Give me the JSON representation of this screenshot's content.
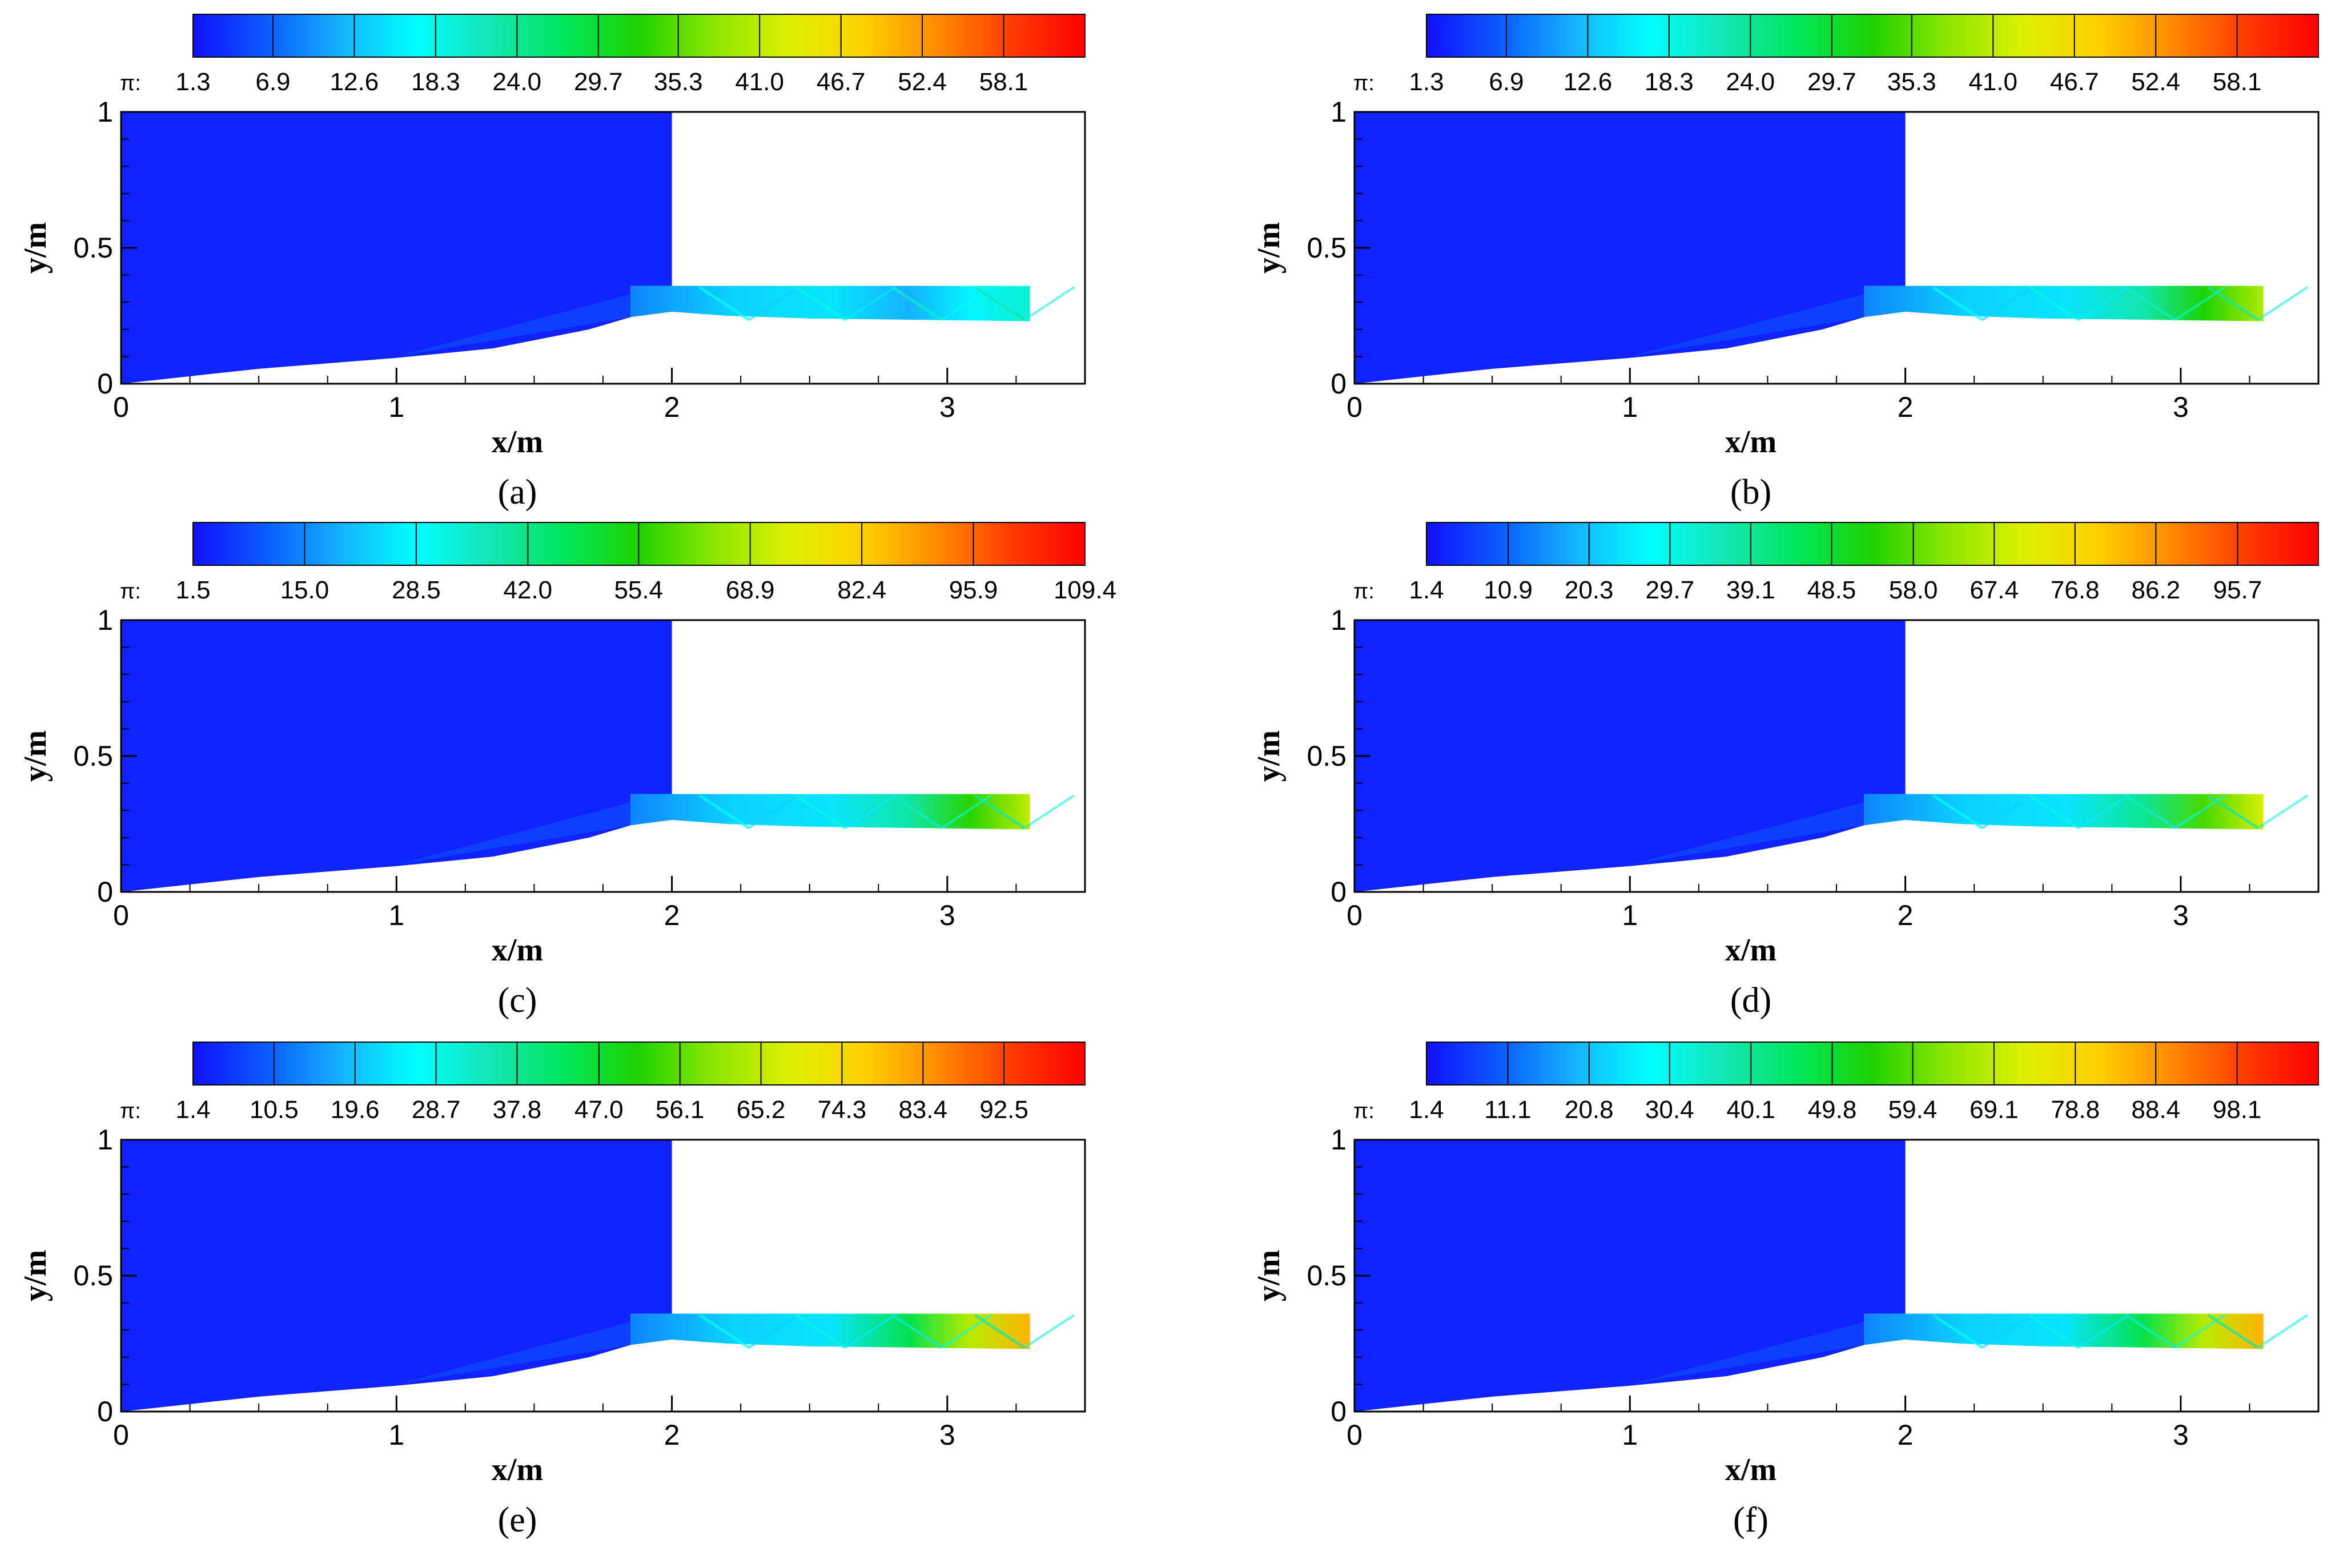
{
  "figure": {
    "colormap": [
      "#1010ff",
      "#0a5cff",
      "#14b4ff",
      "#00ffff",
      "#14e6b4",
      "#00e65a",
      "#1ed200",
      "#8ce600",
      "#dcf000",
      "#ffd200",
      "#ff8c00",
      "#ff3c00",
      "#ff0000"
    ],
    "panels": [
      {
        "label": "(a)",
        "colorbar_symbol": "π:",
        "chart_data": {
          "type": "heatmap",
          "title": "",
          "xlabel": "x/m",
          "ylabel": "y/m",
          "xlim": [
            0,
            3.5
          ],
          "ylim": [
            0,
            1
          ],
          "x_ticks": [
            "0",
            "1",
            "2",
            "3"
          ],
          "y_ticks": [
            "0",
            "0.5",
            "1"
          ],
          "colorbar_ticks": [
            "1.3",
            "6.9",
            "12.6",
            "18.3",
            "24.0",
            "29.7",
            "35.3",
            "41.0",
            "46.7",
            "52.4",
            "58.1"
          ],
          "colorbar_range": [
            1.3,
            63.8
          ],
          "field_summary": {
            "inflow_region_value": 1.3,
            "duct_exit_max_value": 20
          }
        }
      },
      {
        "label": "(b)",
        "colorbar_symbol": "π:",
        "chart_data": {
          "type": "heatmap",
          "title": "",
          "xlabel": "x/m",
          "ylabel": "y/m",
          "xlim": [
            0,
            3.5
          ],
          "ylim": [
            0,
            1
          ],
          "x_ticks": [
            "0",
            "1",
            "2",
            "3"
          ],
          "y_ticks": [
            "0",
            "0.5",
            "1"
          ],
          "colorbar_ticks": [
            "1.3",
            "6.9",
            "12.6",
            "18.3",
            "24.0",
            "29.7",
            "35.3",
            "41.0",
            "46.7",
            "52.4",
            "58.1"
          ],
          "colorbar_range": [
            1.3,
            63.8
          ],
          "field_summary": {
            "inflow_region_value": 1.3,
            "duct_exit_max_value": 40
          }
        }
      },
      {
        "label": "(c)",
        "colorbar_symbol": "π:",
        "chart_data": {
          "type": "heatmap",
          "title": "",
          "xlabel": "x/m",
          "ylabel": "y/m",
          "xlim": [
            0,
            3.5
          ],
          "ylim": [
            0,
            1
          ],
          "x_ticks": [
            "0",
            "1",
            "2",
            "3"
          ],
          "y_ticks": [
            "0",
            "0.5",
            "1"
          ],
          "colorbar_ticks": [
            "1.5",
            "15.0",
            "28.5",
            "42.0",
            "55.4",
            "68.9",
            "82.4",
            "95.9",
            "109.4"
          ],
          "colorbar_range": [
            1.5,
            109.4
          ],
          "field_summary": {
            "inflow_region_value": 1.5,
            "duct_exit_max_value": 70
          }
        }
      },
      {
        "label": "(d)",
        "colorbar_symbol": "π:",
        "chart_data": {
          "type": "heatmap",
          "title": "",
          "xlabel": "x/m",
          "ylabel": "y/m",
          "xlim": [
            0,
            3.5
          ],
          "ylim": [
            0,
            1
          ],
          "x_ticks": [
            "0",
            "1",
            "2",
            "3"
          ],
          "y_ticks": [
            "0",
            "0.5",
            "1"
          ],
          "colorbar_ticks": [
            "1.4",
            "10.9",
            "20.3",
            "29.7",
            "39.1",
            "48.5",
            "58.0",
            "67.4",
            "76.8",
            "86.2",
            "95.7"
          ],
          "colorbar_range": [
            1.4,
            105.1
          ],
          "field_summary": {
            "inflow_region_value": 1.4,
            "duct_exit_max_value": 70
          }
        }
      },
      {
        "label": "(e)",
        "colorbar_symbol": "π:",
        "chart_data": {
          "type": "heatmap",
          "title": "",
          "xlabel": "x/m",
          "ylabel": "y/m",
          "xlim": [
            0,
            3.5
          ],
          "ylim": [
            0,
            1
          ],
          "x_ticks": [
            "0",
            "1",
            "2",
            "3"
          ],
          "y_ticks": [
            "0",
            "0.5",
            "1"
          ],
          "colorbar_ticks": [
            "1.4",
            "10.5",
            "19.6",
            "28.7",
            "37.8",
            "47.0",
            "56.1",
            "65.2",
            "74.3",
            "83.4",
            "92.5"
          ],
          "colorbar_range": [
            1.4,
            101.6
          ],
          "field_summary": {
            "inflow_region_value": 1.4,
            "duct_exit_max_value": 80
          }
        }
      },
      {
        "label": "(f)",
        "colorbar_symbol": "π:",
        "chart_data": {
          "type": "heatmap",
          "title": "",
          "xlabel": "x/m",
          "ylabel": "y/m",
          "xlim": [
            0,
            3.5
          ],
          "ylim": [
            0,
            1
          ],
          "x_ticks": [
            "0",
            "1",
            "2",
            "3"
          ],
          "y_ticks": [
            "0",
            "0.5",
            "1"
          ],
          "colorbar_ticks": [
            "1.4",
            "11.1",
            "20.8",
            "30.4",
            "40.1",
            "49.8",
            "59.4",
            "69.1",
            "78.8",
            "88.4",
            "98.1"
          ],
          "colorbar_range": [
            1.4,
            107.8
          ],
          "field_summary": {
            "inflow_region_value": 1.4,
            "duct_exit_max_value": 85
          }
        }
      }
    ]
  }
}
